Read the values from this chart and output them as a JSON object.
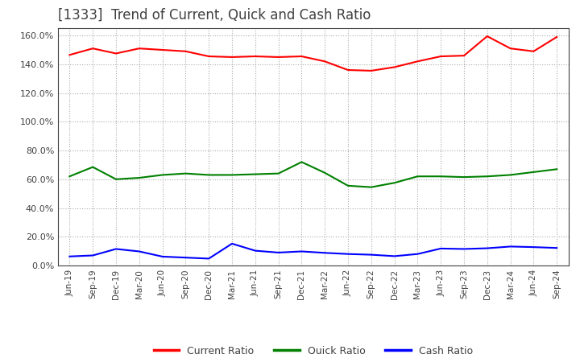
{
  "title": "[1333]  Trend of Current, Quick and Cash Ratio",
  "title_fontsize": 12,
  "title_color": "#404040",
  "background_color": "#ffffff",
  "grid_color": "#aaaaaa",
  "ylim": [
    0.0,
    1.65
  ],
  "yticks": [
    0.0,
    0.2,
    0.4,
    0.6,
    0.8,
    1.0,
    1.2,
    1.4,
    1.6
  ],
  "xlabels": [
    "Jun-19",
    "Sep-19",
    "Dec-19",
    "Mar-20",
    "Jun-20",
    "Sep-20",
    "Dec-20",
    "Mar-21",
    "Jun-21",
    "Sep-21",
    "Dec-21",
    "Mar-22",
    "Jun-22",
    "Sep-22",
    "Dec-22",
    "Mar-23",
    "Jun-23",
    "Sep-23",
    "Dec-23",
    "Mar-24",
    "Jun-24",
    "Sep-24"
  ],
  "current_ratio": [
    1.465,
    1.51,
    1.475,
    1.51,
    1.5,
    1.49,
    1.455,
    1.45,
    1.455,
    1.45,
    1.455,
    1.42,
    1.36,
    1.355,
    1.38,
    1.42,
    1.455,
    1.46,
    1.595,
    1.51,
    1.49,
    1.59
  ],
  "quick_ratio": [
    0.62,
    0.685,
    0.6,
    0.61,
    0.63,
    0.64,
    0.63,
    0.63,
    0.635,
    0.64,
    0.72,
    0.645,
    0.555,
    0.545,
    0.575,
    0.62,
    0.62,
    0.615,
    0.62,
    0.63,
    0.65,
    0.67
  ],
  "cash_ratio": [
    0.063,
    0.07,
    0.115,
    0.098,
    0.062,
    0.055,
    0.048,
    0.152,
    0.103,
    0.09,
    0.098,
    0.088,
    0.08,
    0.075,
    0.065,
    0.08,
    0.118,
    0.115,
    0.12,
    0.132,
    0.128,
    0.122
  ],
  "current_color": "#ff0000",
  "quick_color": "#008000",
  "cash_color": "#0000ff",
  "legend_labels": [
    "Current Ratio",
    "Quick Ratio",
    "Cash Ratio"
  ],
  "line_width": 1.5
}
